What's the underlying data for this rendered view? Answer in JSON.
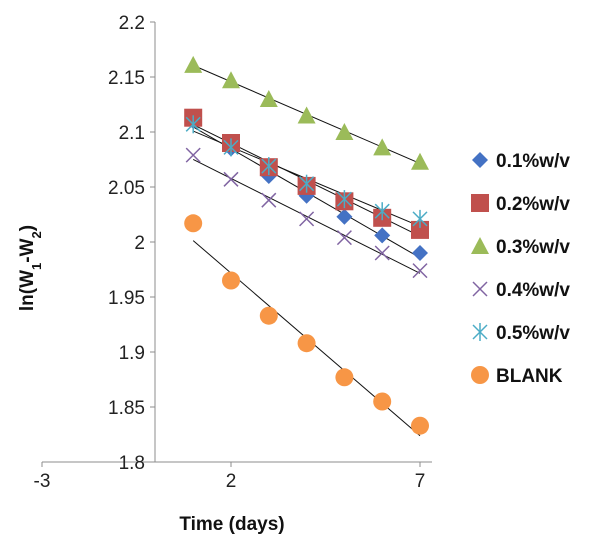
{
  "chart_data": {
    "type": "scatter",
    "title": "",
    "xlabel": "Time (days)",
    "ylabel_main": "ln(W",
    "ylabel_sub1": "1",
    "ylabel_mid": "-W",
    "ylabel_sub2": "2",
    "ylabel_close": ")",
    "xlim": [
      -3,
      7
    ],
    "ylim": [
      1.8,
      2.2
    ],
    "xticks": [
      -3,
      2,
      7
    ],
    "xtick_labels": [
      "-3",
      "2",
      "7"
    ],
    "yticks": [
      1.8,
      1.85,
      1.9,
      1.95,
      2.0,
      2.05,
      2.1,
      2.15,
      2.2
    ],
    "ytick_labels": [
      "1.8",
      "1.85",
      "1.9",
      "1.95",
      "2",
      "2.05",
      "2.1",
      "2.15",
      "2.2"
    ],
    "x": [
      1,
      2,
      3,
      4,
      5,
      6,
      7
    ],
    "legend_position": "right",
    "trendlines": "linear",
    "series": [
      {
        "name": "0.1%w/v",
        "marker": "diamond",
        "color": "#4472C4",
        "values": [
          2.11,
          2.085,
          2.06,
          2.042,
          2.023,
          2.006,
          1.99
        ]
      },
      {
        "name": "0.2%w/v",
        "marker": "square",
        "color": "#C0504D",
        "values": [
          2.113,
          2.09,
          2.068,
          2.051,
          2.037,
          2.022,
          2.011
        ]
      },
      {
        "name": "0.3%w/v",
        "marker": "triangle",
        "color": "#9BBB59",
        "values": [
          2.161,
          2.147,
          2.13,
          2.115,
          2.1,
          2.086,
          2.073
        ]
      },
      {
        "name": "0.4%w/v",
        "marker": "x",
        "color": "#8064A2",
        "values": [
          2.079,
          2.057,
          2.038,
          2.021,
          2.004,
          1.99,
          1.974
        ]
      },
      {
        "name": "0.5%w/v",
        "marker": "star",
        "color": "#4BACC6",
        "values": [
          2.107,
          2.086,
          2.069,
          2.053,
          2.039,
          2.028,
          2.021
        ]
      },
      {
        "name": "BLANK",
        "marker": "circle",
        "color": "#F79646",
        "values": [
          2.017,
          1.965,
          1.933,
          1.908,
          1.877,
          1.855,
          1.833
        ]
      }
    ]
  }
}
